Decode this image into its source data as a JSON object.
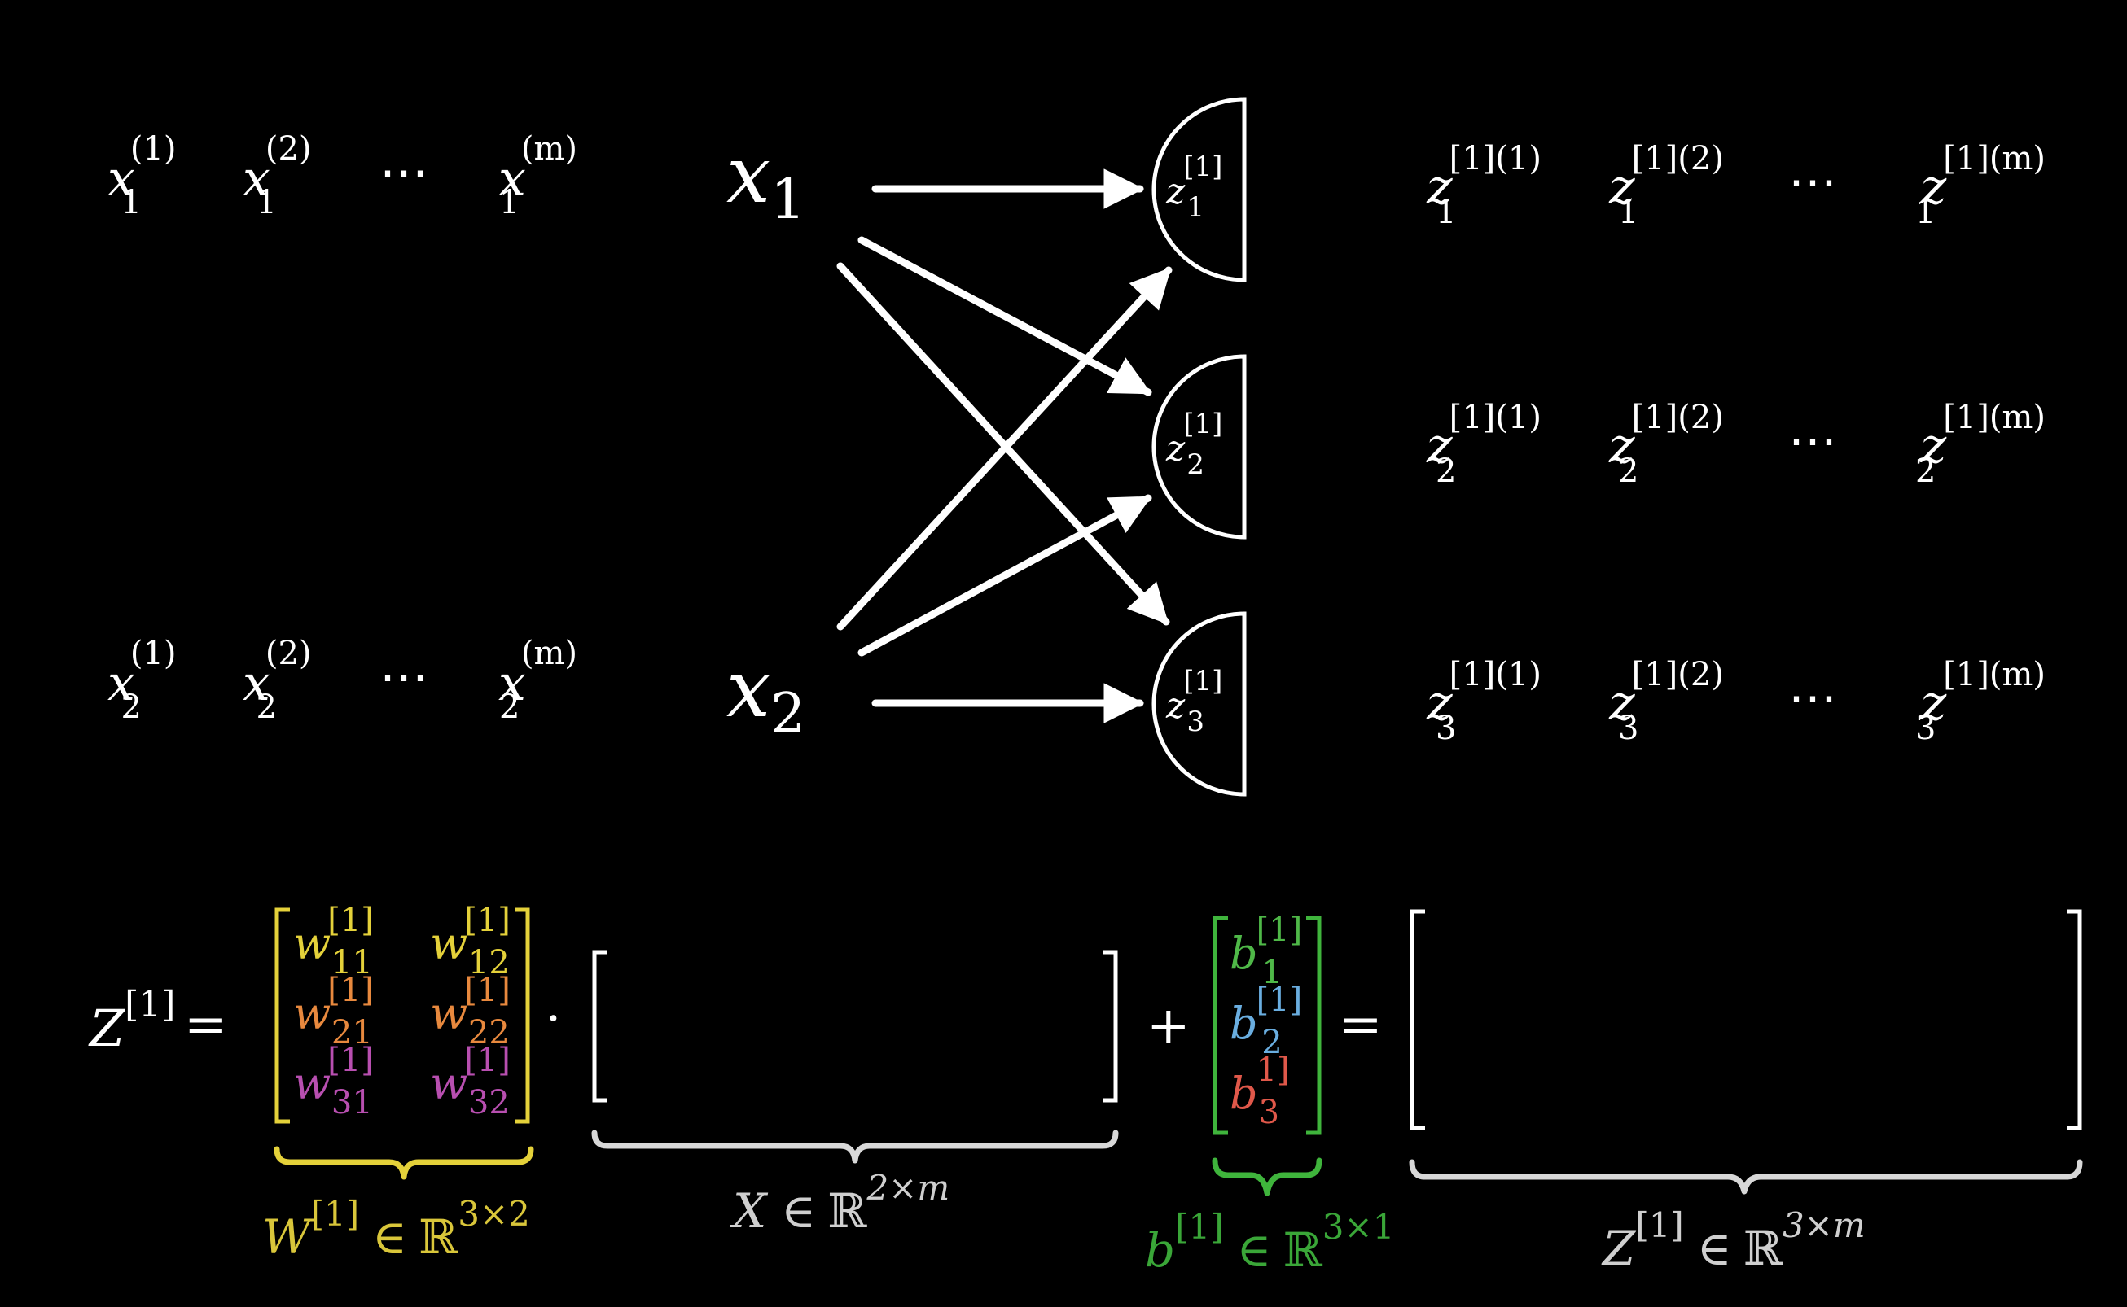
{
  "colors": {
    "background": "#000000",
    "foreground": "#ffffff",
    "w_row1": "#e4d13a",
    "w_row2": "#e8893e",
    "w_row3": "#b84fb0",
    "w_bracket": "#e4d13a",
    "b_row1": "#4fb848",
    "b_row2": "#6aaee0",
    "b_row3": "#e0584a",
    "b_bracket": "#3fb43c",
    "label_W": "#d9c63a",
    "label_b": "#3aa638",
    "label_gray": "#cfcfcf"
  },
  "x1_samples": {
    "base": "x",
    "sub": "1",
    "sups": [
      "(1)",
      "(2)",
      "(m)"
    ],
    "dots": "⋯"
  },
  "x2_samples": {
    "base": "x",
    "sub": "2",
    "sups": [
      "(1)",
      "(2)",
      "(m)"
    ],
    "dots": "⋯"
  },
  "inputs": [
    {
      "base": "x",
      "sub": "1"
    },
    {
      "base": "x",
      "sub": "2"
    }
  ],
  "neurons": [
    {
      "base": "z",
      "sub": "1",
      "sup": "[1]"
    },
    {
      "base": "z",
      "sub": "2",
      "sup": "[1]"
    },
    {
      "base": "z",
      "sub": "3",
      "sup": "[1]"
    }
  ],
  "z_samples": {
    "base": "z",
    "subs": [
      "1",
      "2",
      "3"
    ],
    "sups": [
      "[1](1)",
      "[1](2)",
      "[1](m)"
    ],
    "dots": "⋯"
  },
  "equation": {
    "lhs": {
      "base": "Z",
      "sup": "[1]"
    },
    "equals": "=",
    "dot": "·",
    "plus": "+",
    "W_entries": [
      [
        {
          "base": "w",
          "sub": "11",
          "sup": "[1]"
        },
        {
          "base": "w",
          "sub": "12",
          "sup": "[1]"
        }
      ],
      [
        {
          "base": "w",
          "sub": "21",
          "sup": "[1]"
        },
        {
          "base": "w",
          "sub": "22",
          "sup": "[1]"
        }
      ],
      [
        {
          "base": "w",
          "sub": "31",
          "sup": "[1]"
        },
        {
          "base": "w",
          "sub": "32",
          "sup": "[1]"
        }
      ]
    ],
    "b_entries": [
      {
        "base": "b",
        "sub": "1",
        "sup": "[1]"
      },
      {
        "base": "b",
        "sub": "2",
        "sup": "[1]"
      },
      {
        "base": "b",
        "sub": "3",
        "sup": "1]"
      }
    ]
  },
  "labels": {
    "W": {
      "base": "W",
      "sup": "[1]",
      "in": "∈",
      "set": "ℝ",
      "dims": "3×2"
    },
    "X": {
      "base": "X",
      "sup": "",
      "in": "∈",
      "set": "ℝ",
      "dims": "2×m"
    },
    "b": {
      "base": "b",
      "sup": "[1]",
      "in": "∈",
      "set": "ℝ",
      "dims": "3×1"
    },
    "Z": {
      "base": "Z",
      "sup": "[1]",
      "in": "∈",
      "set": "ℝ",
      "dims": "3×m"
    }
  }
}
